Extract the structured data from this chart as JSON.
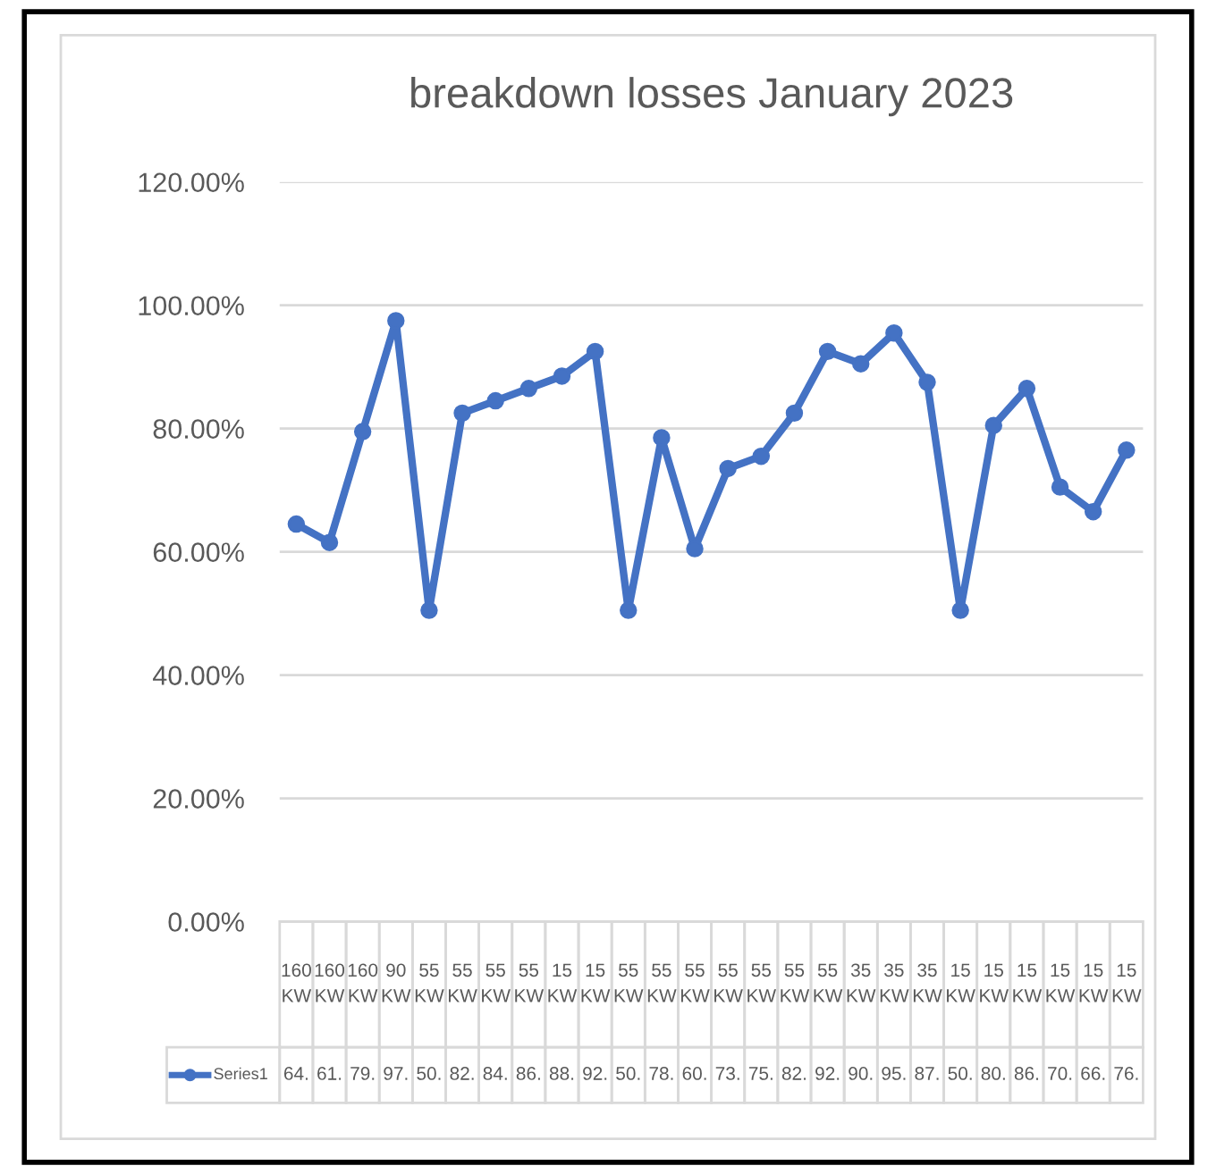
{
  "chart_data": {
    "type": "line",
    "title": "breakdown losses January 2023",
    "categories": [
      "160 KW",
      "160 KW",
      "160 KW",
      "90 KW",
      "55 KW",
      "55 KW",
      "55 KW",
      "55 KW",
      "15 KW",
      "15 KW",
      "55 KW",
      "55 KW",
      "55 KW",
      "55 KW",
      "55 KW",
      "55 KW",
      "55 KW",
      "35 KW",
      "35 KW",
      "35 KW",
      "15 KW",
      "15 KW",
      "15 KW",
      "15 KW",
      "15 KW",
      "15 KW"
    ],
    "series": [
      {
        "name": "Series1",
        "color": "#4472c4",
        "values": [
          64.5,
          61.5,
          79.5,
          97.5,
          50.5,
          82.5,
          84.5,
          86.5,
          88.5,
          92.5,
          50.5,
          78.5,
          60.5,
          73.5,
          75.5,
          82.5,
          92.5,
          90.5,
          95.5,
          87.5,
          50.5,
          80.5,
          86.5,
          70.5,
          66.5,
          76.5
        ],
        "value_labels": [
          "64.",
          "61.",
          "79.",
          "97.",
          "50.",
          "82.",
          "84.",
          "86.",
          "88.",
          "92.",
          "50.",
          "78.",
          "60.",
          "73.",
          "75.",
          "82.",
          "92.",
          "90.",
          "95.",
          "87.",
          "50.",
          "80.",
          "86.",
          "70.",
          "66.",
          "76."
        ]
      }
    ],
    "ylim": [
      0,
      120
    ],
    "yticks": [
      {
        "value": 0,
        "label": "0.00%"
      },
      {
        "value": 20,
        "label": "20.00%"
      },
      {
        "value": 40,
        "label": "40.00%"
      },
      {
        "value": 60,
        "label": "60.00%"
      },
      {
        "value": 80,
        "label": "80.00%"
      },
      {
        "value": 100,
        "label": "100.00%"
      },
      {
        "value": 120,
        "label": "120.00%"
      }
    ],
    "grid": "y",
    "legend": "bottom",
    "marker": "circle",
    "line_style": "solid"
  }
}
